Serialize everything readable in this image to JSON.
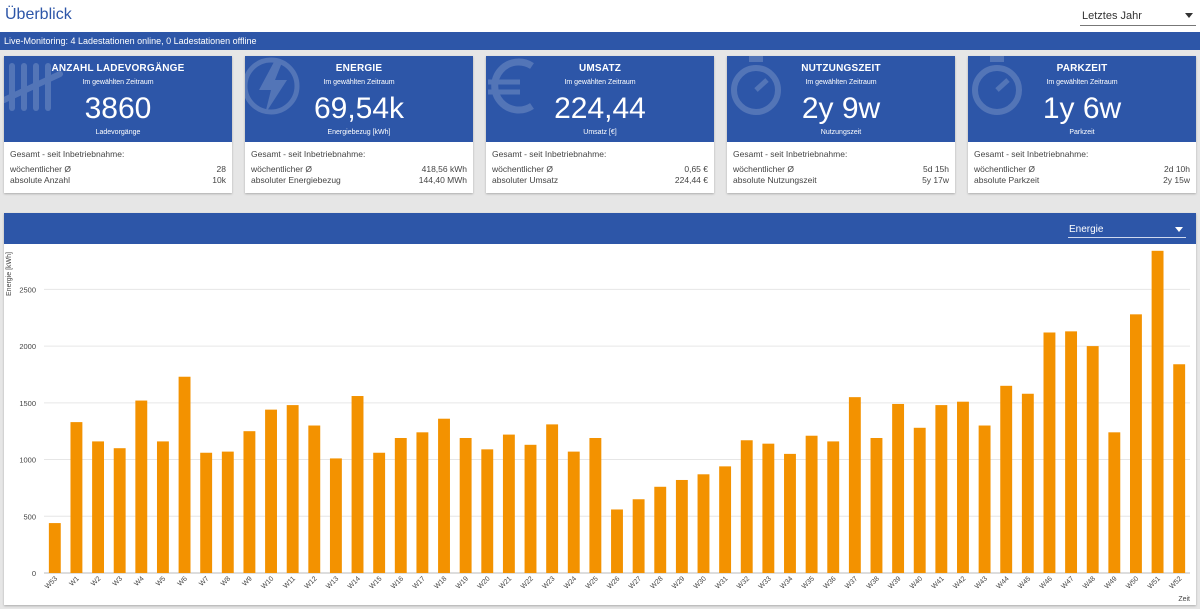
{
  "header": {
    "title": "Überblick",
    "period_select": "Letztes Jahr"
  },
  "status": {
    "text": "Live-Monitoring: 4 Ladestationen online, 0 Ladestationen offline"
  },
  "cards": [
    {
      "icon": "tally-icon",
      "title": "ANZAHL LADEVORGÄNGE",
      "subtitle": "Im gewählten Zeitraum",
      "value": "3860",
      "unit": "Ladevorgänge",
      "total_label": "Gesamt - seit Inbetriebnahme:",
      "row1_label": "wöchentlicher Ø",
      "row1_value": "28",
      "row2_label": "absolute Anzahl",
      "row2_value": "10k"
    },
    {
      "icon": "lightning-icon",
      "title": "ENERGIE",
      "subtitle": "Im gewählten Zeitraum",
      "value": "69,54k",
      "unit": "Energiebezug [kWh]",
      "total_label": "Gesamt - seit Inbetriebnahme:",
      "row1_label": "wöchentlicher Ø",
      "row1_value": "418,56 kWh",
      "row2_label": "absoluter Energiebezug",
      "row2_value": "144,40 MWh"
    },
    {
      "icon": "euro-icon",
      "title": "UMSATZ",
      "subtitle": "Im gewählten Zeitraum",
      "value": "224,44",
      "unit": "Umsatz [€]",
      "total_label": "Gesamt - seit Inbetriebnahme:",
      "row1_label": "wöchentlicher Ø",
      "row1_value": "0,65 €",
      "row2_label": "absoluter Umsatz",
      "row2_value": "224,44 €"
    },
    {
      "icon": "stopwatch-icon",
      "title": "NUTZUNGSZEIT",
      "subtitle": "Im gewählten Zeitraum",
      "value": "2y 9w",
      "unit": "Nutzungszeit",
      "total_label": "Gesamt - seit Inbetriebnahme:",
      "row1_label": "wöchentlicher Ø",
      "row1_value": "5d 15h",
      "row2_label": "absolute Nutzungszeit",
      "row2_value": "5y 17w"
    },
    {
      "icon": "stopwatch-icon",
      "title": "PARKZEIT",
      "subtitle": "Im gewählten Zeitraum",
      "value": "1y 6w",
      "unit": "Parkzeit",
      "total_label": "Gesamt - seit Inbetriebnahme:",
      "row1_label": "wöchentlicher Ø",
      "row1_value": "2d 10h",
      "row2_label": "absolute Parkzeit",
      "row2_value": "2y 15w"
    }
  ],
  "chart_panel": {
    "metric_select": "Energie"
  },
  "colors": {
    "primary": "#2d56a8",
    "bar": "#f39200",
    "grid": "#e6e6e6"
  },
  "chart_data": {
    "type": "bar",
    "ylabel": "Energie [kWh]",
    "xlabel": "Zeit",
    "ylim": [
      0,
      2900
    ],
    "yticks": [
      0,
      500,
      1000,
      1500,
      2000,
      2500
    ],
    "grid": true,
    "categories": [
      "W53",
      "W1",
      "W2",
      "W3",
      "W4",
      "W5",
      "W6",
      "W7",
      "W8",
      "W9",
      "W10",
      "W11",
      "W12",
      "W13",
      "W14",
      "W15",
      "W16",
      "W17",
      "W18",
      "W19",
      "W20",
      "W21",
      "W22",
      "W23",
      "W24",
      "W25",
      "W26",
      "W27",
      "W28",
      "W29",
      "W30",
      "W31",
      "W32",
      "W33",
      "W34",
      "W35",
      "W36",
      "W37",
      "W38",
      "W39",
      "W40",
      "W41",
      "W42",
      "W43",
      "W44",
      "W45",
      "W46",
      "W47",
      "W48",
      "W49",
      "W50",
      "W51",
      "W52"
    ],
    "values": [
      440,
      1330,
      1160,
      1100,
      1520,
      1160,
      1730,
      1060,
      1070,
      1250,
      1440,
      1480,
      1300,
      1010,
      1560,
      1060,
      1190,
      1240,
      1360,
      1190,
      1090,
      1220,
      1130,
      1310,
      1070,
      1190,
      560,
      650,
      760,
      820,
      870,
      940,
      1170,
      1140,
      1050,
      1210,
      1160,
      1550,
      1190,
      1490,
      1280,
      1480,
      1510,
      1300,
      1650,
      1580,
      2120,
      2130,
      2000,
      1240,
      2280,
      2840,
      1840
    ]
  }
}
